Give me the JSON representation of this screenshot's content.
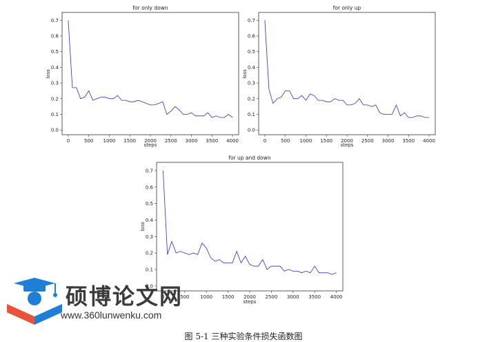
{
  "chart_data": [
    {
      "type": "line",
      "title": "for only down",
      "xlabel": "steps",
      "ylabel": "loss",
      "xlim": [
        -150,
        4150
      ],
      "ylim": [
        -0.03,
        0.75
      ],
      "xticks": [
        0,
        500,
        1000,
        1500,
        2000,
        2500,
        3000,
        3500,
        4000
      ],
      "yticks": [
        0.0,
        0.1,
        0.2,
        0.3,
        0.4,
        0.5,
        0.6,
        0.7
      ],
      "series": [
        {
          "color": "#2b2bd1",
          "x": [
            0,
            100,
            200,
            300,
            400,
            500,
            600,
            700,
            800,
            900,
            1000,
            1100,
            1200,
            1300,
            1400,
            1500,
            1600,
            1700,
            1800,
            1900,
            2000,
            2100,
            2200,
            2300,
            2400,
            2500,
            2600,
            2700,
            2800,
            2900,
            3000,
            3100,
            3200,
            3300,
            3400,
            3500,
            3600,
            3700,
            3800,
            3900,
            4000
          ],
          "y": [
            0.7,
            0.27,
            0.27,
            0.2,
            0.21,
            0.25,
            0.19,
            0.2,
            0.21,
            0.21,
            0.2,
            0.2,
            0.22,
            0.19,
            0.19,
            0.18,
            0.18,
            0.19,
            0.18,
            0.17,
            0.16,
            0.16,
            0.17,
            0.18,
            0.1,
            0.12,
            0.15,
            0.13,
            0.1,
            0.1,
            0.11,
            0.09,
            0.09,
            0.09,
            0.11,
            0.08,
            0.09,
            0.08,
            0.08,
            0.1,
            0.08
          ]
        }
      ]
    },
    {
      "type": "line",
      "title": "for only up",
      "xlabel": "steps",
      "ylabel": "loss",
      "xlim": [
        -150,
        4150
      ],
      "ylim": [
        -0.03,
        0.75
      ],
      "xticks": [
        0,
        500,
        1000,
        1500,
        2000,
        2500,
        3000,
        3500,
        4000
      ],
      "yticks": [
        0.0,
        0.1,
        0.2,
        0.3,
        0.4,
        0.5,
        0.6,
        0.7
      ],
      "series": [
        {
          "color": "#2b2bd1",
          "x": [
            0,
            100,
            200,
            300,
            400,
            500,
            600,
            700,
            800,
            900,
            1000,
            1100,
            1200,
            1300,
            1400,
            1500,
            1600,
            1700,
            1800,
            1900,
            2000,
            2100,
            2200,
            2300,
            2400,
            2500,
            2600,
            2700,
            2800,
            2900,
            3000,
            3100,
            3200,
            3300,
            3400,
            3500,
            3600,
            3700,
            3800,
            3900,
            4000
          ],
          "y": [
            0.7,
            0.26,
            0.17,
            0.2,
            0.21,
            0.25,
            0.25,
            0.2,
            0.2,
            0.22,
            0.19,
            0.23,
            0.22,
            0.19,
            0.19,
            0.18,
            0.18,
            0.2,
            0.19,
            0.19,
            0.16,
            0.16,
            0.17,
            0.2,
            0.16,
            0.16,
            0.15,
            0.16,
            0.11,
            0.1,
            0.1,
            0.1,
            0.16,
            0.09,
            0.11,
            0.08,
            0.08,
            0.09,
            0.09,
            0.08,
            0.08
          ]
        }
      ]
    },
    {
      "type": "line",
      "title": "for up and down",
      "xlabel": "steps",
      "ylabel": "loss",
      "xlim": [
        -150,
        4150
      ],
      "ylim": [
        -0.03,
        0.75
      ],
      "xticks": [
        0,
        500,
        1000,
        1500,
        2000,
        2500,
        3000,
        3500,
        4000
      ],
      "yticks": [
        0.0,
        0.1,
        0.2,
        0.3,
        0.4,
        0.5,
        0.6,
        0.7
      ],
      "series": [
        {
          "color": "#2b2bd1",
          "x": [
            0,
            100,
            200,
            300,
            400,
            500,
            600,
            700,
            800,
            900,
            1000,
            1100,
            1200,
            1300,
            1400,
            1500,
            1600,
            1700,
            1800,
            1900,
            2000,
            2100,
            2200,
            2300,
            2400,
            2500,
            2600,
            2700,
            2800,
            2900,
            3000,
            3100,
            3200,
            3300,
            3400,
            3500,
            3600,
            3700,
            3800,
            3900,
            4000
          ],
          "y": [
            0.7,
            0.19,
            0.27,
            0.2,
            0.21,
            0.2,
            0.19,
            0.2,
            0.19,
            0.26,
            0.23,
            0.17,
            0.15,
            0.16,
            0.14,
            0.14,
            0.14,
            0.21,
            0.14,
            0.18,
            0.13,
            0.12,
            0.12,
            0.16,
            0.1,
            0.12,
            0.12,
            0.12,
            0.09,
            0.1,
            0.09,
            0.09,
            0.08,
            0.09,
            0.08,
            0.12,
            0.08,
            0.08,
            0.08,
            0.07,
            0.08
          ]
        }
      ]
    }
  ],
  "watermark": {
    "brand_cn": "硕博论文网",
    "url": "www.360lunwenku.com",
    "accent_colors": [
      "#1f7fd6",
      "#e8533a"
    ]
  },
  "caption": "图 5-1  三种实验条件损失函数图"
}
